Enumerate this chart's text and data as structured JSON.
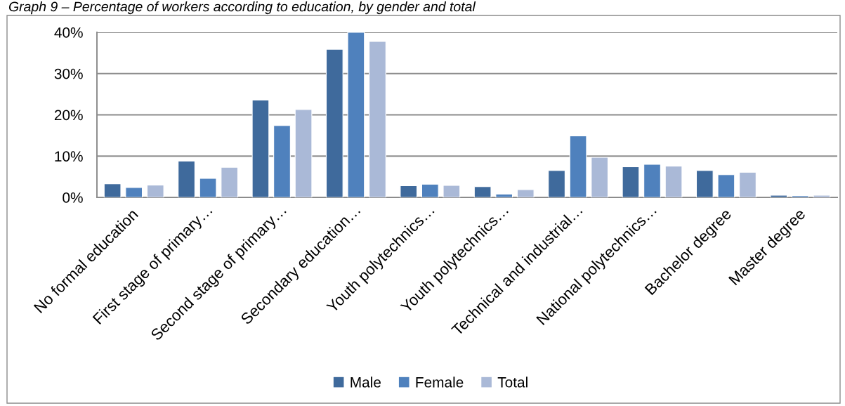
{
  "chart_data": {
    "type": "bar",
    "title": "Graph 9 – Percentage of workers according to education, by gender and total",
    "categories": [
      "No formal education",
      "First stage of primary…",
      "Second stage of primary…",
      "Secondary education…",
      "Youth polytechnics…",
      "Youth polytechnics…",
      "Technical and industrial…",
      "National polytechnics…",
      "Bachelor degree",
      "Master degree"
    ],
    "series": [
      {
        "name": "Male",
        "color": "#3f6a9c",
        "values": [
          3.3,
          8.8,
          23.6,
          35.9,
          2.8,
          2.6,
          6.5,
          7.4,
          6.5,
          0.5
        ]
      },
      {
        "name": "Female",
        "color": "#4f81bd",
        "values": [
          2.4,
          4.6,
          17.4,
          40,
          3.2,
          0.8,
          14.9,
          8.0,
          5.5,
          0.4
        ]
      },
      {
        "name": "Total",
        "color": "#aab9d7",
        "values": [
          3.0,
          7.3,
          21.3,
          37.8,
          2.9,
          1.9,
          9.7,
          7.6,
          6.1,
          0.5
        ]
      }
    ],
    "ylim": [
      0,
      40
    ],
    "yticks": [
      {
        "value": 0,
        "label": "0%"
      },
      {
        "value": 10,
        "label": "10%"
      },
      {
        "value": 20,
        "label": "20%"
      },
      {
        "value": 30,
        "label": "30%"
      },
      {
        "value": 40,
        "label": "40%"
      }
    ],
    "grid": "y",
    "legend": "bottom"
  }
}
